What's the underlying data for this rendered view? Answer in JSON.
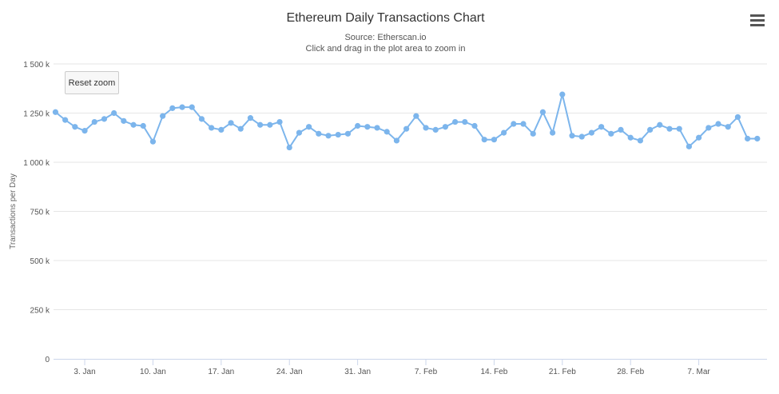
{
  "header": {
    "title": "Ethereum Daily Transactions Chart",
    "source": "Source: Etherscan.io",
    "hint": "Click and drag in the plot area to zoom in",
    "reset_zoom": "Reset zoom",
    "menu_icon": "hamburger-menu-icon"
  },
  "chart_data": {
    "type": "line",
    "title": "Ethereum Daily Transactions Chart",
    "subtitle": "Source: Etherscan.io",
    "xlabel": "",
    "ylabel": "Transactions per Day",
    "ylim": [
      0,
      1500000
    ],
    "yticks": [
      0,
      250000,
      500000,
      750000,
      1000000,
      1250000,
      1500000
    ],
    "ytick_labels": [
      "0",
      "250 k",
      "500 k",
      "750 k",
      "1 000 k",
      "1 250 k",
      "1 500 k"
    ],
    "xticks": [
      "3. Jan",
      "10. Jan",
      "17. Jan",
      "24. Jan",
      "31. Jan",
      "7. Feb",
      "14. Feb",
      "21. Feb",
      "28. Feb",
      "7. Mar"
    ],
    "xtick_day_index": [
      3,
      10,
      17,
      24,
      31,
      38,
      45,
      52,
      59,
      66
    ],
    "x_range_days": [
      -0.2,
      73
    ],
    "grid": true,
    "color": "#7cb5ec",
    "series": [
      {
        "values": [
          1255000,
          1215000,
          1180000,
          1160000,
          1205000,
          1220000,
          1250000,
          1210000,
          1190000,
          1185000,
          1105000,
          1235000,
          1275000,
          1280000,
          1280000,
          1220000,
          1175000,
          1165000,
          1200000,
          1170000,
          1225000,
          1190000,
          1190000,
          1205000,
          1075000,
          1150000,
          1180000,
          1145000,
          1135000,
          1140000,
          1145000,
          1185000,
          1180000,
          1175000,
          1155000,
          1110000,
          1170000,
          1235000,
          1175000,
          1165000,
          1180000,
          1205000,
          1205000,
          1185000,
          1115000,
          1115000,
          1150000,
          1195000,
          1195000,
          1145000,
          1255000,
          1150000,
          1345000,
          1135000,
          1130000,
          1150000,
          1180000,
          1145000,
          1165000,
          1125000,
          1110000,
          1165000,
          1190000,
          1170000,
          1170000,
          1080000,
          1125000,
          1175000,
          1195000,
          1180000,
          1230000,
          1120000,
          1120000
        ]
      }
    ]
  }
}
